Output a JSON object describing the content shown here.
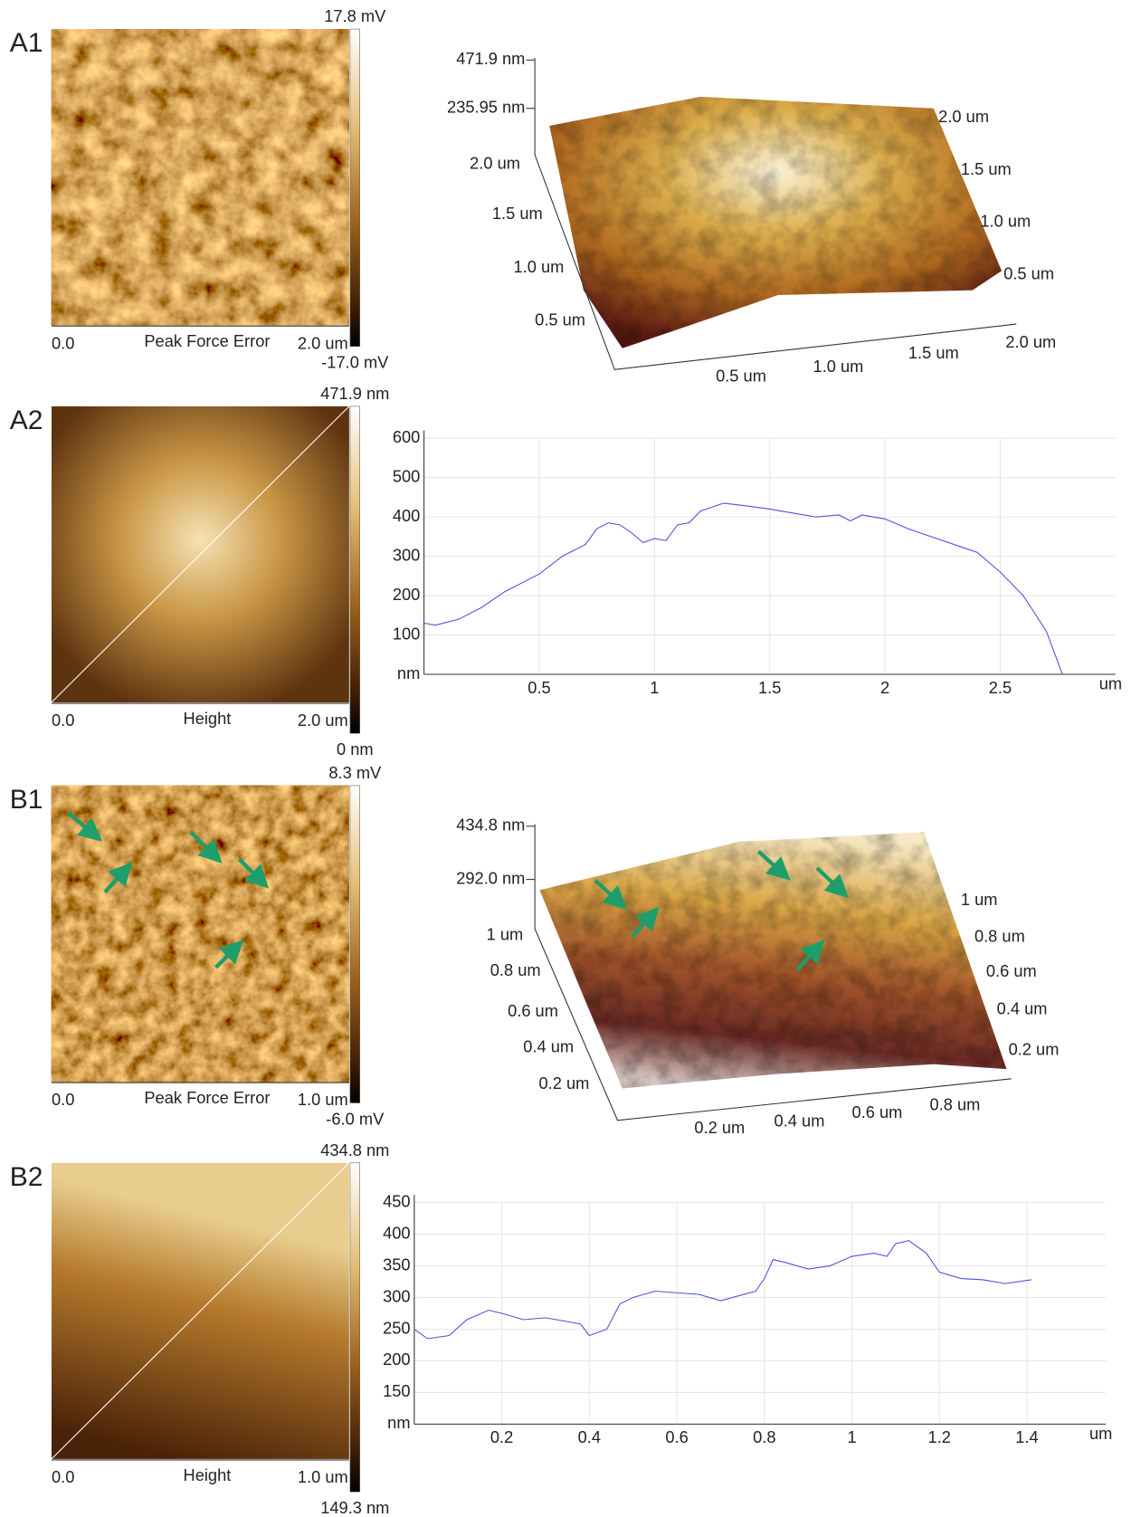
{
  "panels": [
    {
      "label": "A1",
      "scale_max": "17.8 mV",
      "scale_min": "-17.0 mV",
      "origin": "0.0",
      "channel": "Peak Force Error",
      "size": "2.0 um",
      "surface": {
        "z_labels": [
          "471.9 nm",
          "235.95 nm"
        ],
        "left_labels": [
          "2.0 um",
          "1.5 um",
          "1.0 um",
          "0.5 um"
        ],
        "right_labels": [
          "2.0 um",
          "1.5 um",
          "1.0 um",
          "0.5 um"
        ],
        "bottom_labels": [
          "0.5 um",
          "1.0 um",
          "1.5 um",
          "2.0 um"
        ]
      }
    },
    {
      "label": "A2",
      "scale_max": "471.9 nm",
      "scale_min": "0 nm",
      "origin": "0.0",
      "channel": "Height",
      "size": "2.0 um"
    },
    {
      "label": "B1",
      "scale_max": "8.3 mV",
      "scale_min": "-6.0 mV",
      "origin": "0.0",
      "channel": "Peak Force Error",
      "size": "1.0 um",
      "surface": {
        "z_labels": [
          "434.8 nm",
          "292.0 nm"
        ],
        "left_labels": [
          "1 um",
          "0.8 um",
          "0.6 um",
          "0.4 um",
          "0.2 um"
        ],
        "right_labels": [
          "1 um",
          "0.8 um",
          "0.6 um",
          "0.4 um",
          "0.2 um"
        ],
        "bottom_labels": [
          "0.2 um",
          "0.4 um",
          "0.6 um",
          "0.8 um"
        ]
      }
    },
    {
      "label": "B2",
      "scale_max": "434.8 nm",
      "scale_min": "149.3 nm",
      "origin": "0.0",
      "channel": "Height",
      "size": "1.0 um"
    }
  ],
  "chart_data": [
    {
      "type": "line",
      "x_label": "um",
      "color": "#4a55d6",
      "grid": true,
      "x": [
        0,
        0.05,
        0.15,
        0.25,
        0.35,
        0.45,
        0.5,
        0.6,
        0.7,
        0.75,
        0.8,
        0.85,
        0.9,
        0.95,
        1.0,
        1.05,
        1.1,
        1.15,
        1.2,
        1.3,
        1.4,
        1.5,
        1.6,
        1.7,
        1.8,
        1.85,
        1.9,
        2.0,
        2.1,
        2.2,
        2.3,
        2.4,
        2.5,
        2.6,
        2.7,
        2.77
      ],
      "values": [
        130,
        125,
        140,
        170,
        210,
        240,
        255,
        300,
        330,
        370,
        385,
        380,
        360,
        335,
        345,
        340,
        380,
        385,
        415,
        435,
        428,
        420,
        410,
        400,
        405,
        390,
        405,
        395,
        370,
        350,
        330,
        310,
        260,
        200,
        110,
        0
      ],
      "xlim": [
        0,
        3
      ],
      "ylim": [
        0,
        600
      ],
      "xticks": [
        0.5,
        1,
        1.5,
        2,
        2.5
      ],
      "yticks": [
        {
          "value": 0,
          "label": "nm"
        },
        100,
        200,
        300,
        400,
        500,
        600
      ]
    },
    {
      "type": "line",
      "x_label": "um",
      "color": "#4a55d6",
      "grid": true,
      "x": [
        0,
        0.03,
        0.08,
        0.12,
        0.17,
        0.2,
        0.25,
        0.3,
        0.35,
        0.38,
        0.4,
        0.44,
        0.47,
        0.5,
        0.55,
        0.65,
        0.7,
        0.78,
        0.8,
        0.82,
        0.85,
        0.9,
        0.95,
        1.0,
        1.05,
        1.08,
        1.1,
        1.13,
        1.17,
        1.2,
        1.25,
        1.3,
        1.35,
        1.41
      ],
      "values": [
        250,
        235,
        240,
        265,
        280,
        275,
        265,
        268,
        262,
        258,
        240,
        250,
        290,
        300,
        310,
        305,
        295,
        310,
        330,
        360,
        355,
        345,
        350,
        365,
        370,
        365,
        385,
        390,
        370,
        340,
        330,
        328,
        322,
        328
      ],
      "xlim": [
        0,
        1.58
      ],
      "ylim": [
        100,
        450
      ],
      "xticks": [
        0.2,
        0.4,
        0.6,
        0.8,
        1,
        1.2,
        1.4
      ],
      "yticks": [
        {
          "value": 100,
          "label": "nm"
        },
        150,
        200,
        250,
        300,
        350,
        400,
        450
      ]
    }
  ]
}
